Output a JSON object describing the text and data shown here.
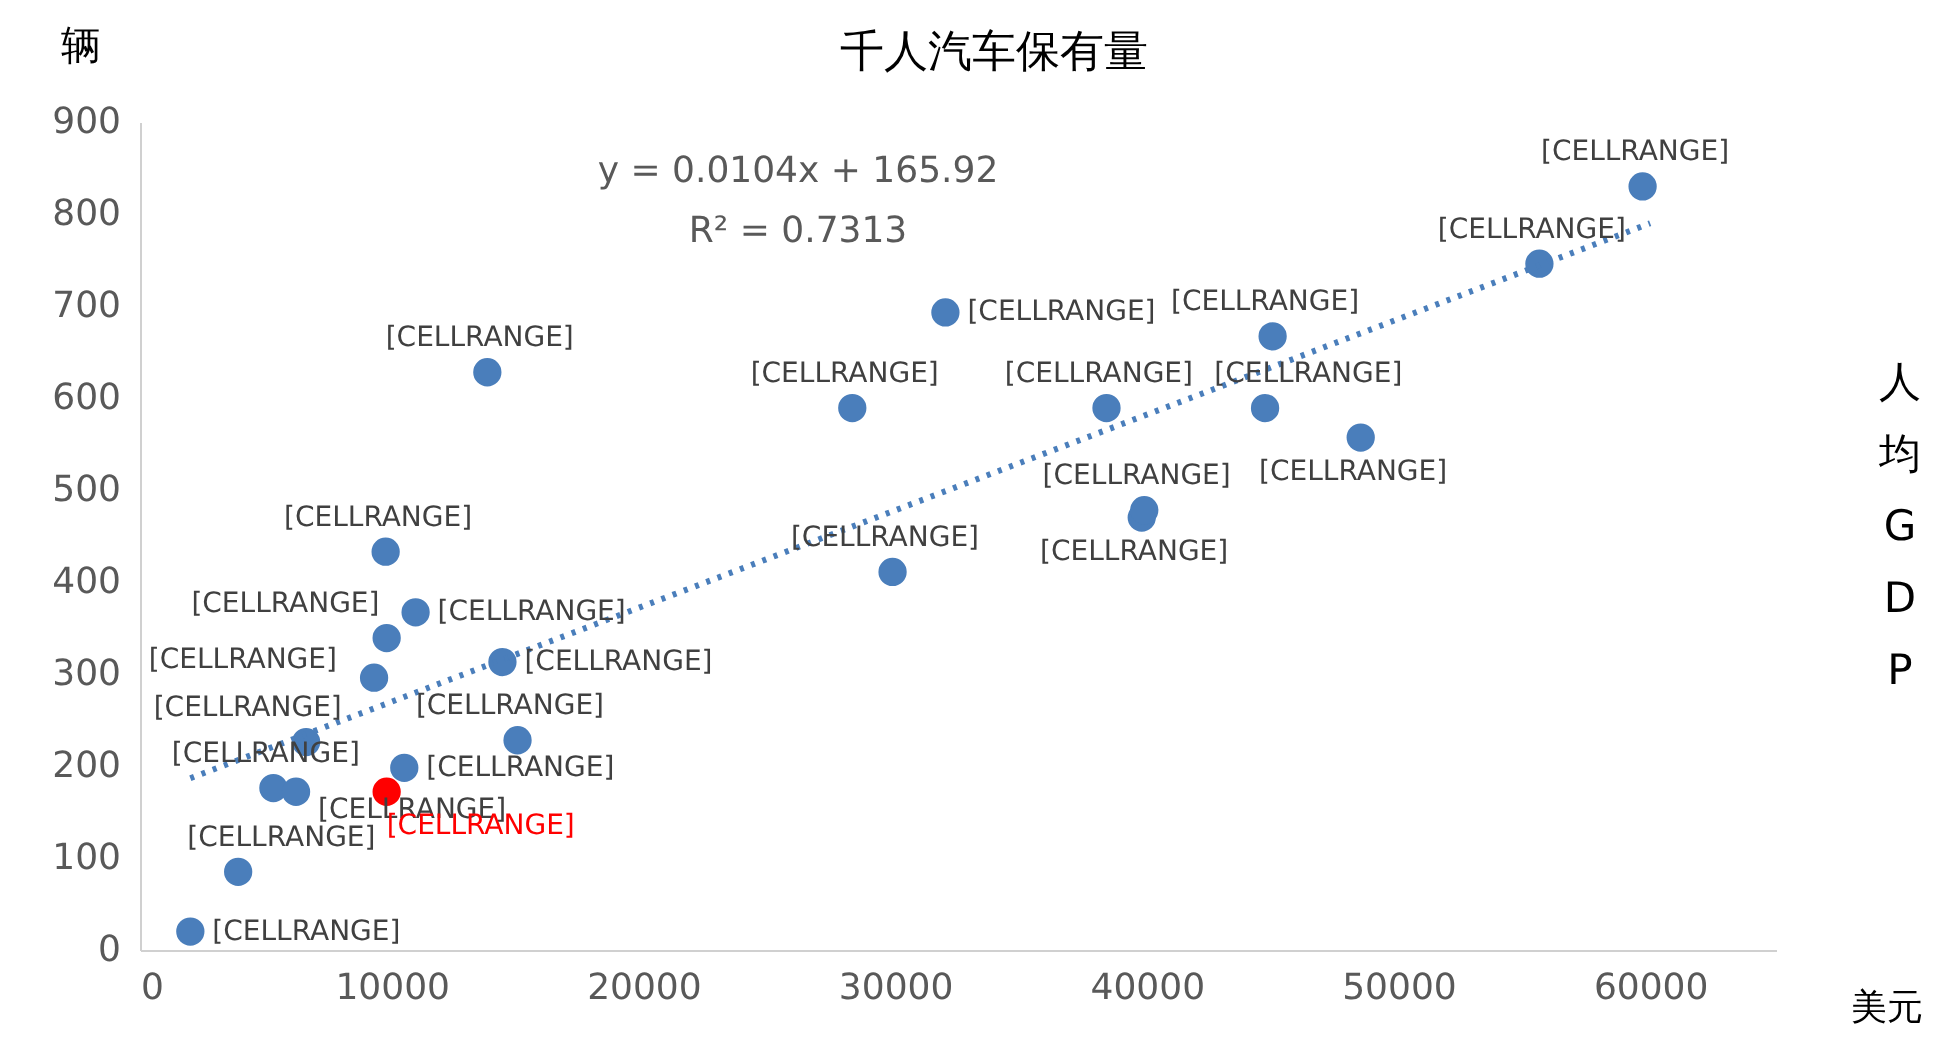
{
  "chart_data": {
    "type": "scatter",
    "title": "千人汽车保有量",
    "xlabel": "美元",
    "ylabel": "辆",
    "annotations": [
      "y = 0.0104x + 165.92",
      "R² = 0.7313",
      "人均GDP"
    ],
    "xlim": [
      0,
      65000
    ],
    "xticks": [
      0,
      10000,
      20000,
      30000,
      40000,
      50000,
      60000
    ],
    "ylim": [
      0,
      900
    ],
    "yticks": [
      0,
      100,
      200,
      300,
      400,
      500,
      600,
      700,
      800,
      900
    ],
    "grid": false,
    "marker": "circle",
    "series": [
      {
        "color": "#4a7ebb",
        "x": [
          2000,
          3900,
          5300,
          6200,
          6600,
          9300,
          9800,
          9760,
          10950,
          10500,
          15000,
          14400,
          13800,
          28300,
          29900,
          32000,
          38400,
          39800,
          39900,
          45000,
          44700,
          48500,
          55600,
          59700
        ],
        "values": [
          20,
          85,
          176,
          172,
          226,
          296,
          339,
          433,
          367,
          198,
          228,
          313,
          628,
          589,
          411,
          693,
          589,
          470,
          478,
          667,
          589,
          557,
          746,
          830
        ],
        "value_labels": [
          "[CELLRANGE]",
          "[CELLRANGE]",
          "[CELLRANGE]",
          "[CELLRANGE]",
          "[CELLRANGE]",
          "[CELLRANGE]",
          "[CELLRANGE]",
          "[CELLRANGE]",
          "[CELLRANGE]",
          "[CELLRANGE]",
          "[CELLRANGE]",
          "[CELLRANGE]",
          "[CELLRANGE]",
          "[CELLRANGE]",
          "[CELLRANGE]",
          "[CELLRANGE]",
          "[CELLRANGE]",
          "[CELLRANGE]",
          "[CELLRANGE]",
          "[CELLRANGE]",
          "[CELLRANGE]",
          "[CELLRANGE]",
          "[CELLRANGE]",
          "[CELLRANGE]"
        ]
      },
      {
        "color": "#ff0000",
        "x": [
          9800
        ],
        "values": [
          172
        ],
        "value_labels": [
          "[CELLRANGE]"
        ]
      },
      {
        "type": "line",
        "color": "#4a7ebb",
        "line_style": "dotted",
        "marker": "none",
        "x": [
          2000,
          60000
        ],
        "values": [
          186.7,
          789.9
        ]
      }
    ]
  }
}
